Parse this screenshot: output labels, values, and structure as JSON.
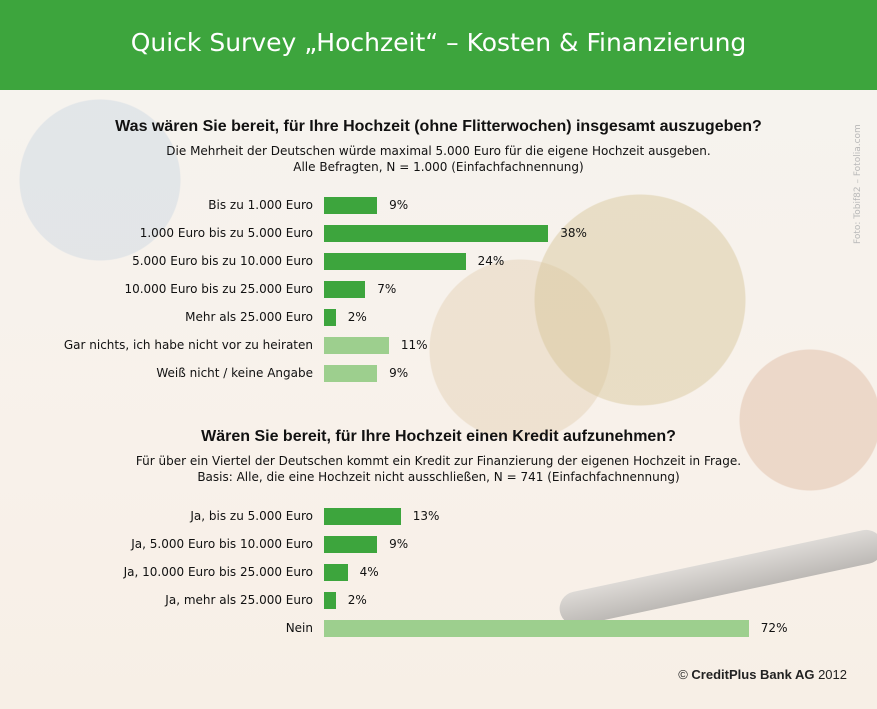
{
  "header": {
    "title": "Quick Survey „Hochzeit“ – Kosten & Finanzierung"
  },
  "photo_credit": "Foto: Tobif82 – Fotolia.com",
  "colors": {
    "header_bg": "#3da53d",
    "bar": "#3da53d",
    "bar_light": "#9dcf8e"
  },
  "chart_data": [
    {
      "type": "bar",
      "orientation": "horizontal",
      "title": "Was wären Sie bereit, für Ihre Hochzeit (ohne Flitterwochen) insgesamt auszugeben?",
      "subtitle": "Die Mehrheit der Deutschen würde maximal 5.000 Euro für die eigene Hochzeit ausgeben.",
      "basis": "Alle Befragten, N = 1.000 (Einfachfachnennung)",
      "categories": [
        "Bis zu 1.000 Euro",
        "1.000 Euro bis zu 5.000 Euro",
        "5.000 Euro bis zu 10.000 Euro",
        "10.000 Euro bis zu 25.000 Euro",
        "Mehr als 25.000 Euro",
        "Gar nichts, ich habe nicht vor zu heiraten",
        "Weiß nicht / keine Angabe"
      ],
      "values": [
        9,
        38,
        24,
        7,
        2,
        11,
        9
      ],
      "value_labels": [
        "9%",
        "38%",
        "24%",
        "7%",
        "2%",
        "11%",
        "9%"
      ],
      "highlight": [
        true,
        true,
        true,
        true,
        true,
        false,
        false
      ]
    },
    {
      "type": "bar",
      "orientation": "horizontal",
      "title": "Wären Sie bereit, für Ihre Hochzeit einen Kredit aufzunehmen?",
      "subtitle": "Für über ein Viertel der Deutschen kommt ein Kredit zur Finanzierung der eigenen Hochzeit in Frage.",
      "basis": "Basis: Alle, die eine Hochzeit nicht ausschließen, N = 741 (Einfachfachnennung)",
      "categories": [
        "Ja, bis zu 5.000 Euro",
        "Ja, 5.000 Euro bis 10.000 Euro",
        "Ja, 10.000 Euro bis 25.000 Euro",
        "Ja, mehr als 25.000 Euro",
        "Nein"
      ],
      "values": [
        13,
        9,
        4,
        2,
        72
      ],
      "value_labels": [
        "13%",
        "9%",
        "4%",
        "2%",
        "72%"
      ],
      "highlight": [
        true,
        true,
        true,
        true,
        false
      ]
    }
  ],
  "footer": {
    "prefix": "© ",
    "brand": "CreditPlus Bank AG",
    "year": " 2012"
  }
}
